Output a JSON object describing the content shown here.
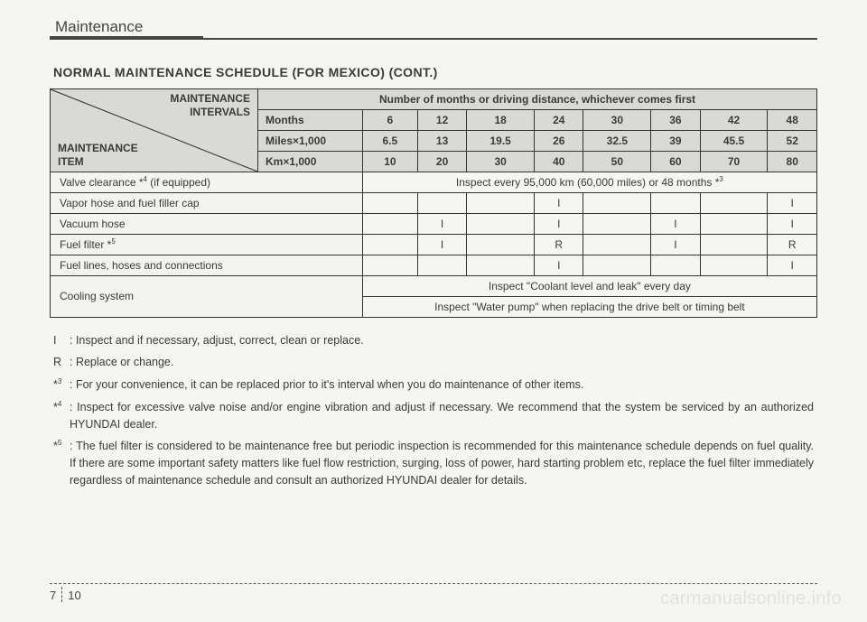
{
  "chapter": "Maintenance",
  "section_title": "NORMAL MAINTENANCE SCHEDULE (FOR MEXICO) (CONT.)",
  "corner": {
    "top1": "MAINTENANCE",
    "top2": "INTERVALS",
    "bot1": "MAINTENANCE",
    "bot2": "ITEM"
  },
  "top_header": "Number of months or driving distance, whichever comes first",
  "unit_rows": [
    {
      "label": "Months",
      "vals": [
        "6",
        "12",
        "18",
        "24",
        "30",
        "36",
        "42",
        "48"
      ]
    },
    {
      "label": "Miles×1,000",
      "vals": [
        "6.5",
        "13",
        "19.5",
        "26",
        "32.5",
        "39",
        "45.5",
        "52"
      ]
    },
    {
      "label": "Km×1,000",
      "vals": [
        "10",
        "20",
        "30",
        "40",
        "50",
        "60",
        "70",
        "80"
      ]
    }
  ],
  "valve_row": {
    "label_pre": "Valve clearance *",
    "label_sup": "4",
    "label_post": " (if equipped)",
    "text_pre": "Inspect every 95,000 km (60,000 miles) or 48 months *",
    "text_sup": "3"
  },
  "item_rows": [
    {
      "label": "Vapor hose and fuel filler cap",
      "vals": [
        "",
        "",
        "",
        "I",
        "",
        "",
        "",
        "I"
      ]
    },
    {
      "label": "Vacuum hose",
      "vals": [
        "",
        "I",
        "",
        "I",
        "",
        "I",
        "",
        "I"
      ]
    },
    {
      "label_pre": "Fuel filter *",
      "label_sup": "5",
      "label_post": "",
      "vals": [
        "",
        "I",
        "",
        "R",
        "",
        "I",
        "",
        "R"
      ]
    },
    {
      "label": "Fuel lines, hoses and connections",
      "vals": [
        "",
        "",
        "",
        "I",
        "",
        "",
        "",
        "I"
      ]
    }
  ],
  "cooling_row": {
    "label": "Cooling system",
    "line1": "Inspect \"Coolant level and leak\" every day",
    "line2": "Inspect \"Water pump\" when replacing the drive belt or timing belt"
  },
  "notes": [
    {
      "key": "I",
      "sup": "",
      "text": ": Inspect and if necessary, adjust, correct, clean or replace."
    },
    {
      "key": "R",
      "sup": "",
      "text": ": Replace or change."
    },
    {
      "key": "*",
      "sup": "3",
      "text": ": For your convenience, it can be replaced prior to it's interval when you do maintenance of other items."
    },
    {
      "key": "*",
      "sup": "4",
      "text": ": Inspect for excessive valve noise and/or engine vibration and adjust if necessary. We recommend that the system be serviced by an authorized HYUNDAI dealer."
    },
    {
      "key": "*",
      "sup": "5",
      "text": ": The fuel filter is considered to be maintenance free but periodic inspection is recommended for this maintenance schedule depends on fuel quality. If there are some important safety matters like fuel flow restriction, surging, loss of power, hard starting problem etc, replace the fuel filter immediately regardless of maintenance schedule and consult an authorized HYUNDAI dealer for details."
    }
  ],
  "page": {
    "p1": "7",
    "p2": "10"
  },
  "watermark": "carmanualsonline.info",
  "colors": {
    "hdr_bg": "#d9dad8",
    "row_bg": "#f3f3f1"
  }
}
